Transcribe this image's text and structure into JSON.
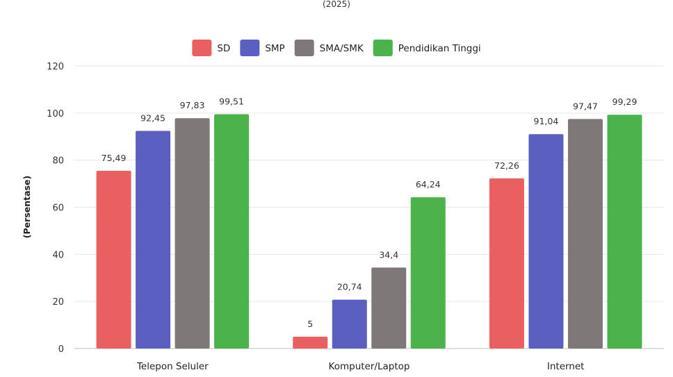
{
  "chart_data": {
    "type": "bar",
    "subtitle": "(2025)",
    "ylabel": "(Persentase)",
    "xlabel": "",
    "ylim": [
      0,
      120
    ],
    "yticks": [
      0,
      20,
      40,
      60,
      80,
      100,
      120
    ],
    "grid": true,
    "legend_position": "top-center",
    "categories": [
      "Telepon Seluler",
      "Komputer/Laptop",
      "Internet"
    ],
    "series": [
      {
        "name": "SD",
        "color": "#ea5f5f",
        "values": [
          75.49,
          5,
          72.26
        ],
        "labels": [
          "75,49",
          "5",
          "72,26"
        ]
      },
      {
        "name": "SMP",
        "color": "#5b5fbf",
        "values": [
          92.45,
          20.74,
          91.04
        ],
        "labels": [
          "92,45",
          "20,74",
          "91,04"
        ]
      },
      {
        "name": "SMA/SMK",
        "color": "#7f7878",
        "values": [
          97.83,
          34.4,
          97.47
        ],
        "labels": [
          "97,83",
          "34,4",
          "97,47"
        ]
      },
      {
        "name": "Pendidikan Tinggi",
        "color": "#4cb24c",
        "values": [
          99.51,
          64.24,
          99.29
        ],
        "labels": [
          "99,51",
          "64,24",
          "99,29"
        ]
      }
    ]
  }
}
